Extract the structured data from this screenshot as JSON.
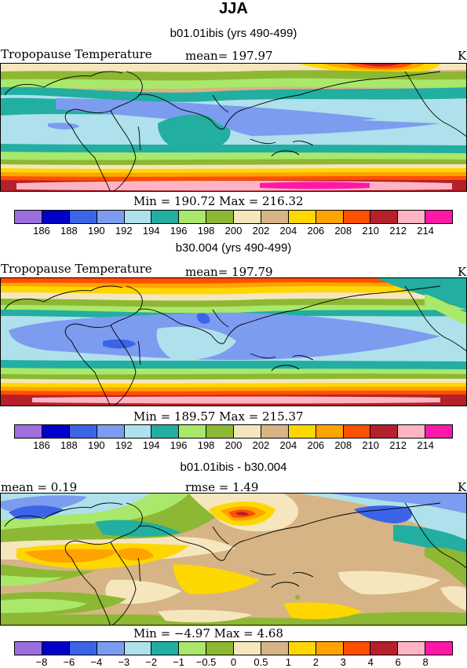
{
  "title": "JJA",
  "panels": [
    {
      "title": "b01.01ibis (yrs 490-499)",
      "left_label": "Tropopause Temperature",
      "mean_text": "mean= 197.97",
      "unit": "K",
      "minmax_text": "Min = 190.72 Max = 216.32"
    },
    {
      "title": "b30.004 (yrs 490-499)",
      "left_label": "Tropopause Temperature",
      "mean_text": "mean= 197.79",
      "unit": "K",
      "minmax_text": "Min = 189.57 Max = 215.37"
    },
    {
      "title": "b01.01ibis - b30.004",
      "mean_text": "mean =    0.19",
      "rmse_text": "rmse =    1.49",
      "unit": "K",
      "minmax_text": "Min =   −4.97 Max =    4.68"
    }
  ],
  "colorbar_abs": {
    "colors": [
      "#9c6fdc",
      "#0000c8",
      "#3c64e6",
      "#7c9cf0",
      "#aee1eb",
      "#22aea0",
      "#a9e86a",
      "#8db833",
      "#f5e6bd",
      "#d6b485",
      "#ffd700",
      "#ffa300",
      "#ff5000",
      "#b5202a",
      "#ffb4c4",
      "#ff18a8"
    ],
    "labels": [
      "186",
      "188",
      "190",
      "192",
      "194",
      "196",
      "198",
      "200",
      "202",
      "204",
      "206",
      "208",
      "210",
      "212",
      "214"
    ]
  },
  "colorbar_diff": {
    "colors": [
      "#9c6fdc",
      "#0000c8",
      "#3c64e6",
      "#7c9cf0",
      "#aee1eb",
      "#22aea0",
      "#a9e86a",
      "#8db833",
      "#f5e6bd",
      "#d6b485",
      "#ffd700",
      "#ffa300",
      "#ff5000",
      "#b5202a",
      "#ffb4c4",
      "#ff18a8"
    ],
    "labels": [
      "−8",
      "−6",
      "−4",
      "−3",
      "−2",
      "−1",
      "−0.5",
      "0",
      "0.5",
      "1",
      "2",
      "3",
      "4",
      "6",
      "8"
    ]
  }
}
